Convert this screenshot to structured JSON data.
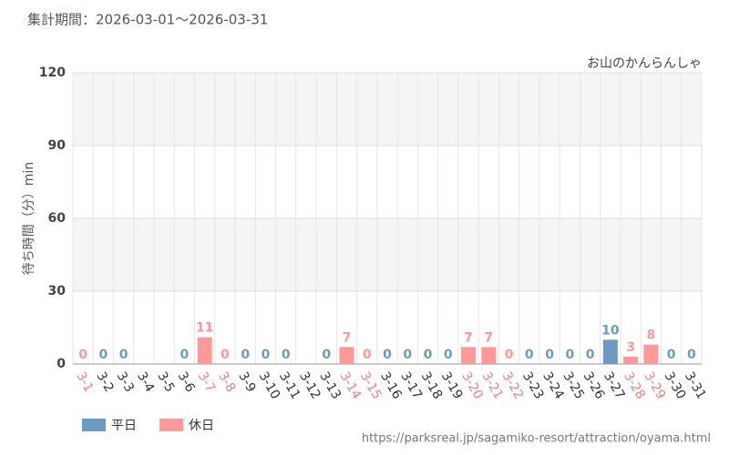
{
  "chart_data": {
    "type": "bar",
    "title": "集計期間：2026-03-01〜2026-03-31",
    "subtitle": "お山のかんらんしゃ",
    "y_label": "待ち時間（分）min",
    "source": "https://parksreal.jp/sagamiko-resort/attraction/oyama.html",
    "categories": [
      "3-1",
      "3-2",
      "3-3",
      "3-4",
      "3-5",
      "3-6",
      "3-7",
      "3-8",
      "3-9",
      "3-10",
      "3-11",
      "3-12",
      "3-13",
      "3-14",
      "3-15",
      "3-16",
      "3-17",
      "3-18",
      "3-19",
      "3-20",
      "3-21",
      "3-22",
      "3-23",
      "3-24",
      "3-25",
      "3-26",
      "3-27",
      "3-28",
      "3-29",
      "3-30",
      "3-31"
    ],
    "series": [
      {
        "name": "平日",
        "color": "#6b9bc3",
        "values": [
          null,
          0,
          0,
          null,
          null,
          0,
          null,
          null,
          0,
          0,
          0,
          null,
          0,
          null,
          null,
          0,
          0,
          0,
          0,
          null,
          null,
          null,
          0,
          0,
          0,
          0,
          10,
          null,
          null,
          0,
          0
        ]
      },
      {
        "name": "休日",
        "color": "#ff9999",
        "values": [
          0,
          null,
          null,
          null,
          null,
          null,
          11,
          0,
          null,
          null,
          null,
          null,
          null,
          7,
          0,
          null,
          null,
          null,
          null,
          7,
          7,
          0,
          null,
          null,
          null,
          null,
          null,
          3,
          8,
          null,
          null
        ]
      }
    ],
    "ylim": [
      0,
      120
    ],
    "yticks": [
      0,
      30,
      60,
      90,
      120
    ],
    "grid": true,
    "legend": "bottom-left"
  }
}
